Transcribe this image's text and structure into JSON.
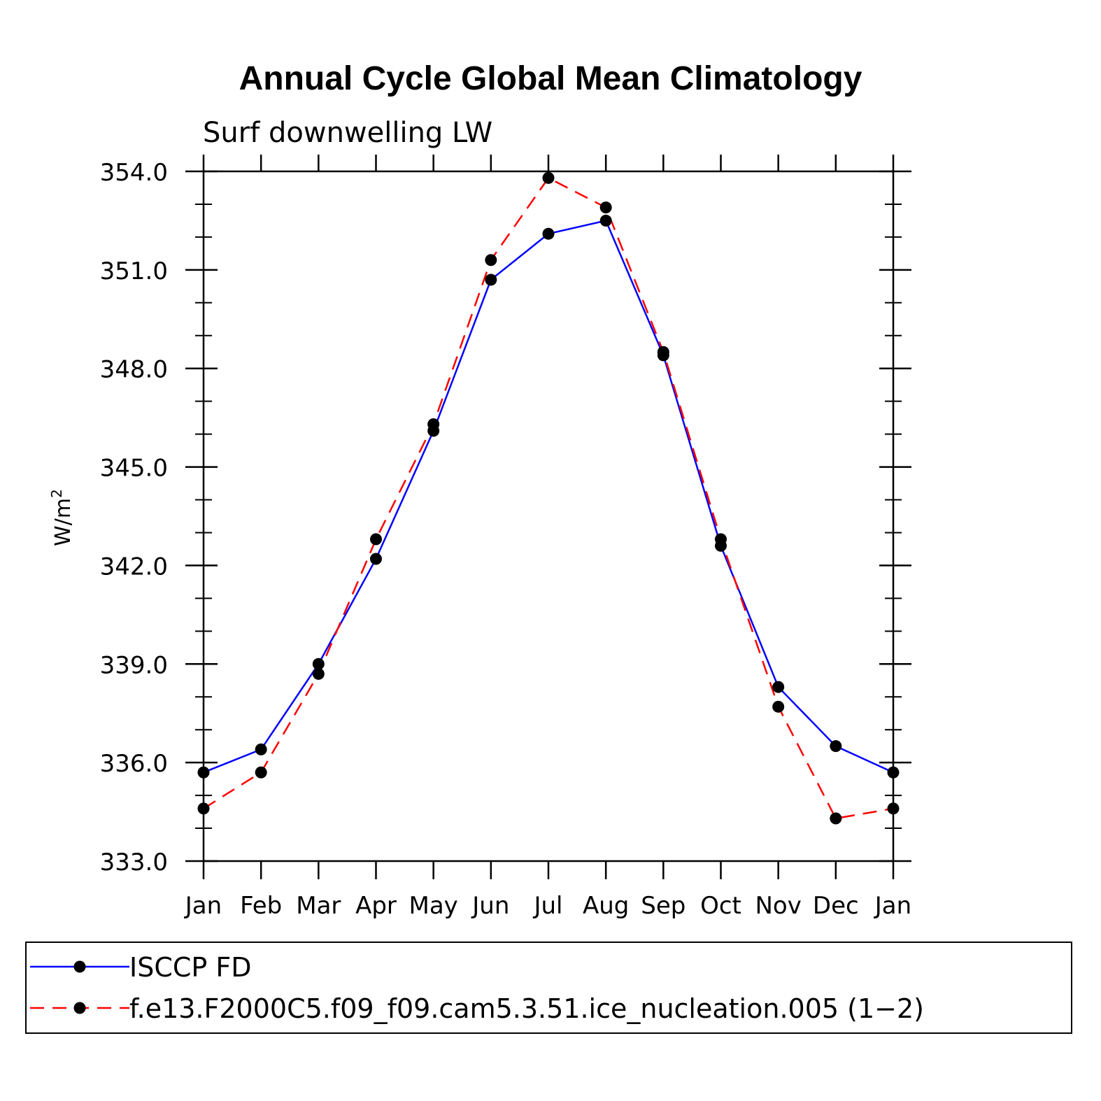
{
  "chart_data": {
    "type": "line",
    "title": "Annual Cycle Global Mean Climatology",
    "subtitle": "Surf downwelling LW",
    "xlabel": "",
    "ylabel": "W/m",
    "ylabel_superscript": "2",
    "categories": [
      "Jan",
      "Feb",
      "Mar",
      "Apr",
      "May",
      "Jun",
      "Jul",
      "Aug",
      "Sep",
      "Oct",
      "Nov",
      "Dec",
      "Jan"
    ],
    "ylim": [
      333.0,
      354.0
    ],
    "yticks": [
      "333.0",
      "336.0",
      "339.0",
      "342.0",
      "345.0",
      "348.0",
      "351.0",
      "354.0"
    ],
    "grid": false,
    "legend_position": "bottom",
    "series": [
      {
        "name": "ISCCP FD",
        "color": "#0000ff",
        "style": "solid",
        "values": [
          335.7,
          336.4,
          339.0,
          342.2,
          346.1,
          350.7,
          352.1,
          352.5,
          348.4,
          342.6,
          338.3,
          336.5,
          335.7
        ]
      },
      {
        "name": "f.e13.F2000C5.f09_f09.cam5.3.51.ice_nucleation.005 (1−2)",
        "color": "#ff0000",
        "style": "dashed",
        "values": [
          334.6,
          335.7,
          338.7,
          342.8,
          346.3,
          351.3,
          353.8,
          352.9,
          348.5,
          342.8,
          337.7,
          334.3,
          334.6
        ]
      }
    ]
  }
}
